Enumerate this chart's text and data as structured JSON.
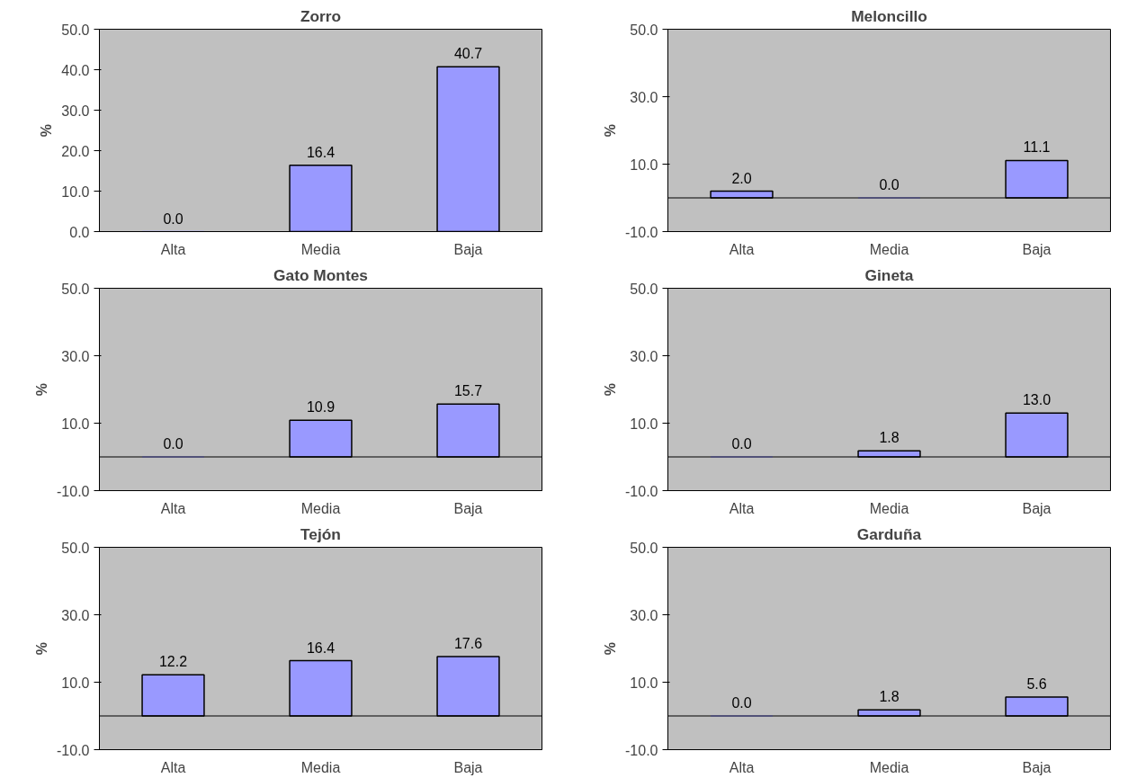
{
  "chart_data": [
    {
      "type": "bar",
      "title": "Zorro",
      "ylabel": "%",
      "categories": [
        "Alta",
        "Media",
        "Baja"
      ],
      "values": [
        0.0,
        16.4,
        40.7
      ],
      "value_labels": [
        "0.0",
        "16.4",
        "40.7"
      ],
      "color": "#9999ff",
      "ylim": [
        0,
        50
      ],
      "yticks": [
        {
          "value": 0,
          "label": "0.0"
        },
        {
          "value": 10,
          "label": "10.0"
        },
        {
          "value": 20,
          "label": "20.0"
        },
        {
          "value": 30,
          "label": "30.0"
        },
        {
          "value": 40,
          "label": "40.0"
        },
        {
          "value": 50,
          "label": "50.0"
        }
      ]
    },
    {
      "type": "bar",
      "title": "Meloncillo",
      "ylabel": "%",
      "categories": [
        "Alta",
        "Media",
        "Baja"
      ],
      "values": [
        2.0,
        0.0,
        11.1
      ],
      "value_labels": [
        "2.0",
        "0.0",
        "11.1"
      ],
      "color": "#9999ff",
      "ylim": [
        -10,
        50
      ],
      "yticks": [
        {
          "value": -10,
          "label": "-10.0"
        },
        {
          "value": 10,
          "label": "10.0"
        },
        {
          "value": 30,
          "label": "30.0"
        },
        {
          "value": 50,
          "label": "50.0"
        }
      ]
    },
    {
      "type": "bar",
      "title": "Gato Montes",
      "ylabel": "%",
      "categories": [
        "Alta",
        "Media",
        "Baja"
      ],
      "values": [
        0.0,
        10.9,
        15.7
      ],
      "value_labels": [
        "0.0",
        "10.9",
        "15.7"
      ],
      "color": "#9999ff",
      "ylim": [
        -10,
        50
      ],
      "yticks": [
        {
          "value": -10,
          "label": "-10.0"
        },
        {
          "value": 10,
          "label": "10.0"
        },
        {
          "value": 30,
          "label": "30.0"
        },
        {
          "value": 50,
          "label": "50.0"
        }
      ]
    },
    {
      "type": "bar",
      "title": "Gineta",
      "ylabel": "%",
      "categories": [
        "Alta",
        "Media",
        "Baja"
      ],
      "values": [
        0.0,
        1.8,
        13.0
      ],
      "value_labels": [
        "0.0",
        "1.8",
        "13.0"
      ],
      "color": "#9999ff",
      "ylim": [
        -10,
        50
      ],
      "yticks": [
        {
          "value": -10,
          "label": "-10.0"
        },
        {
          "value": 10,
          "label": "10.0"
        },
        {
          "value": 30,
          "label": "30.0"
        },
        {
          "value": 50,
          "label": "50.0"
        }
      ]
    },
    {
      "type": "bar",
      "title": "Tejón",
      "ylabel": "%",
      "categories": [
        "Alta",
        "Media",
        "Baja"
      ],
      "values": [
        12.2,
        16.4,
        17.6
      ],
      "value_labels": [
        "12.2",
        "16.4",
        "17.6"
      ],
      "color": "#9999ff",
      "ylim": [
        -10,
        50
      ],
      "yticks": [
        {
          "value": -10,
          "label": "-10.0"
        },
        {
          "value": 10,
          "label": "10.0"
        },
        {
          "value": 30,
          "label": "30.0"
        },
        {
          "value": 50,
          "label": "50.0"
        }
      ]
    },
    {
      "type": "bar",
      "title": "Garduña",
      "ylabel": "%",
      "categories": [
        "Alta",
        "Media",
        "Baja"
      ],
      "values": [
        0.0,
        1.8,
        5.6
      ],
      "value_labels": [
        "0.0",
        "1.8",
        "5.6"
      ],
      "color": "#9999ff",
      "ylim": [
        -10,
        50
      ],
      "yticks": [
        {
          "value": -10,
          "label": "-10.0"
        },
        {
          "value": 10,
          "label": "10.0"
        },
        {
          "value": 30,
          "label": "30.0"
        },
        {
          "value": 50,
          "label": "50.0"
        }
      ]
    }
  ]
}
